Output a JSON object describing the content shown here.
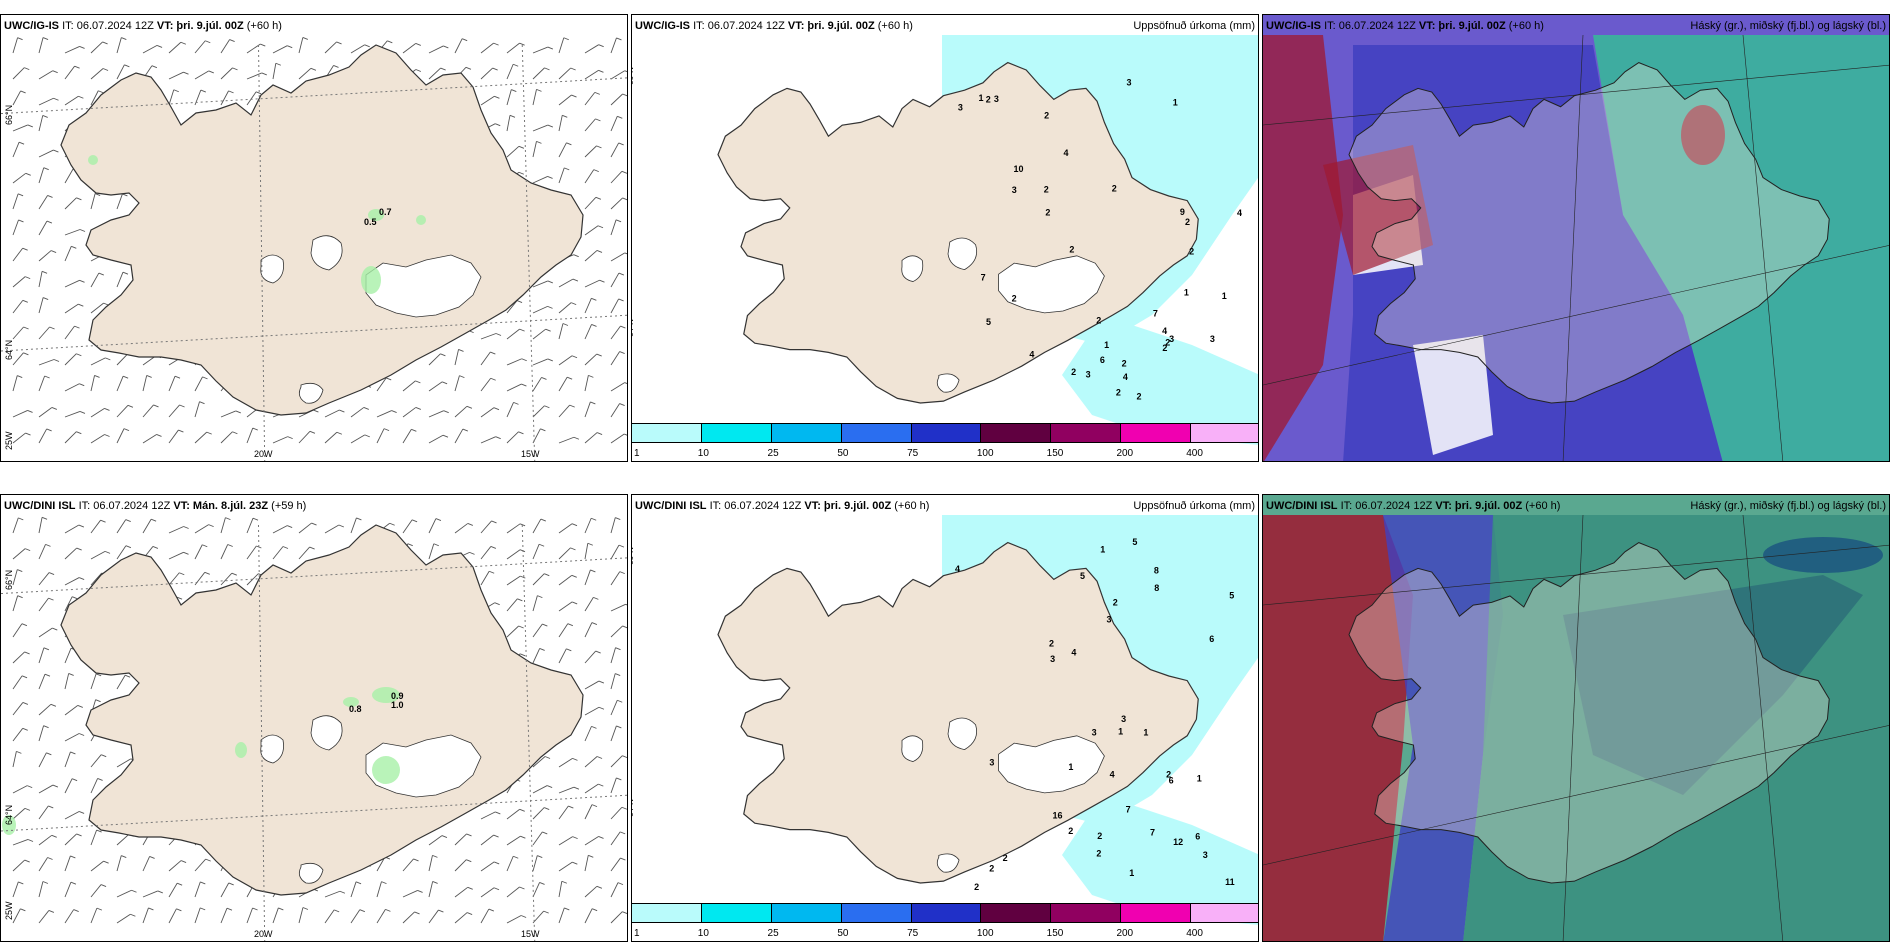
{
  "panels": {
    "p1": {
      "model": "UWC/IG-IS",
      "it": "IT: 06.07.2024 12Z",
      "vt_label": "VT:",
      "vt": "þri. 9.júl. 00Z",
      "lead": "(+60 h)"
    },
    "p2": {
      "model": "UWC/IG-IS",
      "it": "IT: 06.07.2024 12Z",
      "vt_label": "VT:",
      "vt": "þri. 9.júl. 00Z",
      "lead": "(+60 h)",
      "title_right": "Uppsöfnuð úrkoma (mm)"
    },
    "p3": {
      "model": "UWC/IG-IS",
      "it": "IT: 06.07.2024 12Z",
      "vt_label": "VT:",
      "vt": "þri. 9.júl. 00Z",
      "lead": "(+60 h)",
      "title_right": "Háský (gr.), miðský (fj.bl.) og lágský (bl.)"
    },
    "p4": {
      "model": "UWC/DINI ISL",
      "it": "IT: 06.07.2024 12Z",
      "vt_label": "VT:",
      "vt": "Mán. 8.júl. 23Z",
      "lead": "(+59 h)"
    },
    "p5": {
      "model": "UWC/DINI ISL",
      "it": "IT: 06.07.2024 12Z",
      "vt_label": "VT:",
      "vt": "þri. 9.júl. 00Z",
      "lead": "(+60 h)",
      "title_right": "Uppsöfnuð úrkoma (mm)"
    },
    "p6": {
      "model": "UWC/DINI ISL",
      "it": "IT: 06.07.2024 12Z",
      "vt_label": "VT:",
      "vt": "þri. 9.júl. 00Z",
      "lead": "(+60 h)",
      "title_right": "Háský (gr.), miðský (fj.bl.) og lágský (bl.)"
    }
  },
  "axis": {
    "lat66": "66°N",
    "lat64": "64°N",
    "lon20": "20W",
    "lon15": "15W",
    "lon25": "25W"
  },
  "colorbar": {
    "labels": [
      "1",
      "10",
      "25",
      "50",
      "75",
      "100",
      "150",
      "200",
      "400"
    ],
    "colors": [
      "#b9fbfb",
      "#00e8f0",
      "#00b8f0",
      "#2a6ef0",
      "#2030c8",
      "#600040",
      "#900060",
      "#f000b0",
      "#f8b0f8"
    ]
  },
  "wind_values": {
    "ig": [
      "0.7",
      "0.5"
    ],
    "dini": [
      "0.9",
      "1.0",
      "0.8"
    ]
  },
  "precip_numbers": {
    "ig": [
      "2",
      "1",
      "2",
      "3",
      "4",
      "5",
      "6",
      "7",
      "9",
      "10",
      "2",
      "3",
      "3",
      "2",
      "1",
      "4",
      "4",
      "2",
      "1",
      "2",
      "3",
      "2",
      "3",
      "2",
      "2",
      "4",
      "3",
      "2",
      "2",
      "2",
      "1",
      "7",
      "1",
      "2",
      "2",
      "4",
      "2",
      "3",
      "2"
    ],
    "dini": [
      "2",
      "1",
      "3",
      "4",
      "5",
      "5",
      "6",
      "8",
      "12",
      "16",
      "11",
      "3",
      "2",
      "1",
      "7",
      "2",
      "2",
      "3",
      "3",
      "5",
      "4",
      "2",
      "2",
      "1",
      "6",
      "8",
      "4",
      "3",
      "6",
      "7",
      "3",
      "1",
      "2",
      "2",
      "1",
      "1",
      "2"
    ]
  },
  "colors": {
    "land": "#f0e4d6",
    "coast": "#333333",
    "ice": "#ffffff",
    "precip_light": "#b9fbfb",
    "precip_mid": "#00e0f0",
    "cloud_high": "#30c890",
    "cloud_mid": "#4040c0",
    "cloud_low": "#a01830"
  }
}
